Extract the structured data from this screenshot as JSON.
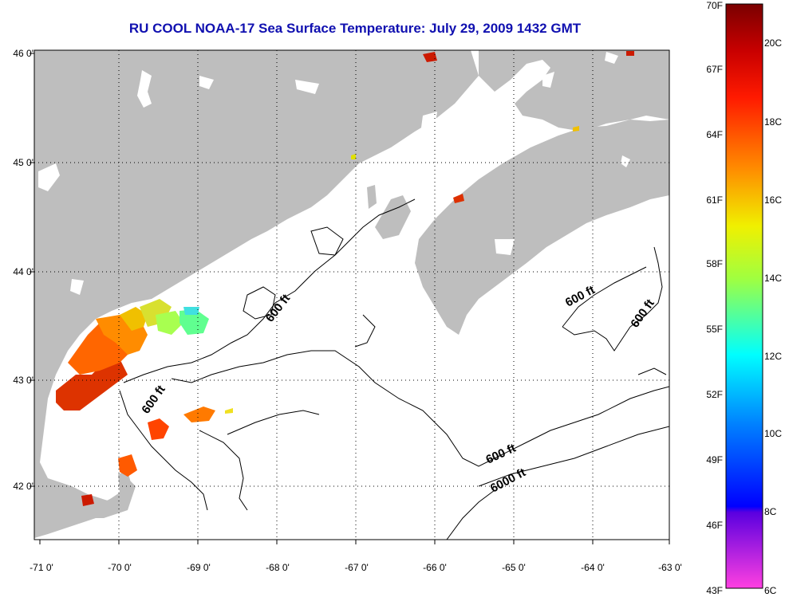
{
  "title": "RU COOL  NOAA-17  Sea Surface Temperature:  July 29, 2009 1432 GMT",
  "map": {
    "lon_labels": [
      "-71 0'",
      "-70 0'",
      "-69 0'",
      "-68 0'",
      "-67 0'",
      "-66 0'",
      "-65 0'",
      "-64 0'",
      "-63 0'"
    ],
    "lat_labels": [
      "46 0'",
      "45 0'",
      "44 0'",
      "43 0'",
      "42 0'"
    ],
    "land_color": "#bebebe",
    "water_color": "#ffffff",
    "contour_labels": [
      {
        "text": "600 ft",
        "rotate": -52
      },
      {
        "text": "600 ft",
        "rotate": -55
      },
      {
        "text": "600 ft",
        "rotate": -28
      },
      {
        "text": "600 ft",
        "rotate": -55
      },
      {
        "text": "600 ft",
        "rotate": -25
      },
      {
        "text": "6000 ft",
        "rotate": -28
      }
    ]
  },
  "colorbar": {
    "f_labels": [
      "70F",
      "67F",
      "64F",
      "61F",
      "58F",
      "55F",
      "52F",
      "49F",
      "46F",
      "43F"
    ],
    "c_labels": [
      "20C",
      "18C",
      "16C",
      "14C",
      "12C",
      "10C",
      "8C",
      "6C"
    ]
  }
}
